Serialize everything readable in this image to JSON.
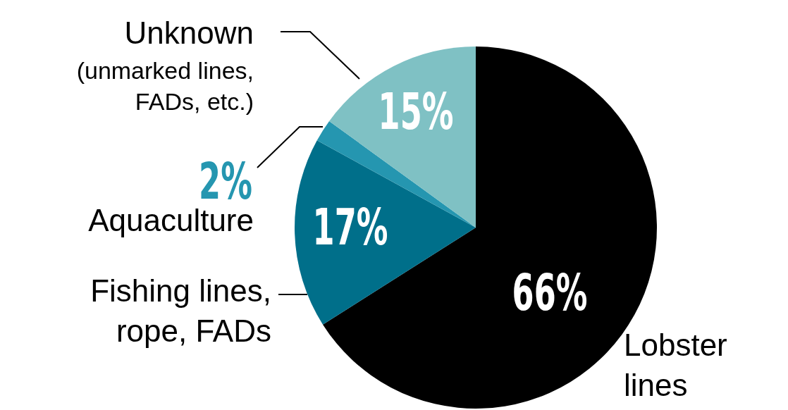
{
  "chart_data": {
    "type": "pie",
    "categories": [
      "Lobster\nlines",
      "Fishing lines,\nrope, FADs",
      "Aquaculture",
      "Unknown\n(unmarked lines,\nFADs, etc.)"
    ],
    "values": [
      66,
      17,
      2,
      15
    ],
    "colors": [
      "#000000",
      "#006f8a",
      "#2596b0",
      "#7fc1c4"
    ],
    "value_labels": [
      "66%",
      "17%",
      "2%",
      "15%"
    ],
    "legend": false
  }
}
